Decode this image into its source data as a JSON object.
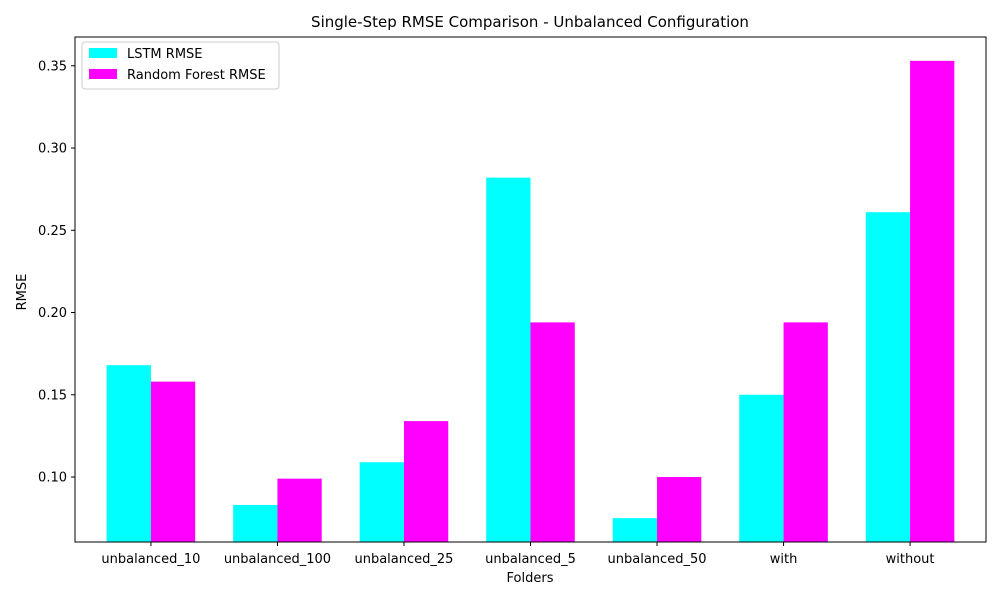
{
  "chart_data": {
    "type": "bar",
    "title": "Single-Step RMSE Comparison - Unbalanced Configuration",
    "xlabel": "Folders",
    "ylabel": "RMSE",
    "categories": [
      "unbalanced_10",
      "unbalanced_100",
      "unbalanced_25",
      "unbalanced_5",
      "unbalanced_50",
      "with",
      "without"
    ],
    "series": [
      {
        "name": "LSTM RMSE",
        "color": "#00ffff",
        "values": [
          0.168,
          0.083,
          0.109,
          0.282,
          0.075,
          0.15,
          0.261
        ]
      },
      {
        "name": "Random Forest RMSE",
        "color": "#ff00ff",
        "values": [
          0.158,
          0.099,
          0.134,
          0.194,
          0.1,
          0.194,
          0.353
        ]
      }
    ],
    "ylim": [
      0.0605,
      0.3675
    ],
    "yticks": [
      "0.10",
      "0.15",
      "0.20",
      "0.25",
      "0.30",
      "0.35"
    ],
    "legend_position": "top-left",
    "grid": false
  }
}
